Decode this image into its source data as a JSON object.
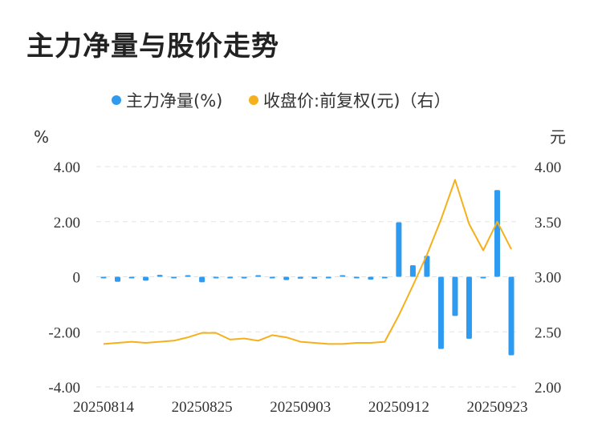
{
  "title": "主力净量与股价走势",
  "chart_data": {
    "type": "bar+line",
    "legend": [
      {
        "label": "主力净量(%)",
        "color": "#2f9bf0"
      },
      {
        "label": "收盘价:前复权(元)（右）",
        "color": "#f5b01c"
      }
    ],
    "left_axis": {
      "unit": "%",
      "ticks": [
        "4.00",
        "2.00",
        "0",
        "-2.00",
        "-4.00"
      ],
      "min": -4,
      "max": 4
    },
    "right_axis": {
      "unit": "元",
      "ticks": [
        "4.00",
        "3.50",
        "3.00",
        "2.50",
        "2.00"
      ],
      "min": 2,
      "max": 4
    },
    "x_labels": [
      "20250814",
      "20250825",
      "20250903",
      "20250912",
      "20250923"
    ],
    "bars": [
      -0.05,
      -0.18,
      -0.03,
      -0.14,
      0.07,
      -0.03,
      0.04,
      -0.2,
      -0.03,
      -0.05,
      -0.06,
      0.03,
      -0.03,
      -0.12,
      -0.07,
      -0.07,
      -0.02,
      0.04,
      -0.04,
      -0.1,
      -0.03,
      1.98,
      0.42,
      0.76,
      -2.62,
      -1.42,
      -2.25,
      -0.02,
      3.15,
      -2.85
    ],
    "close": [
      2.39,
      2.4,
      2.41,
      2.4,
      2.41,
      2.42,
      2.45,
      2.49,
      2.49,
      2.43,
      2.44,
      2.42,
      2.47,
      2.45,
      2.41,
      2.4,
      2.39,
      2.39,
      2.4,
      2.4,
      2.41,
      2.65,
      2.92,
      3.2,
      3.52,
      3.88,
      3.48,
      3.24,
      3.5,
      3.25
    ]
  }
}
